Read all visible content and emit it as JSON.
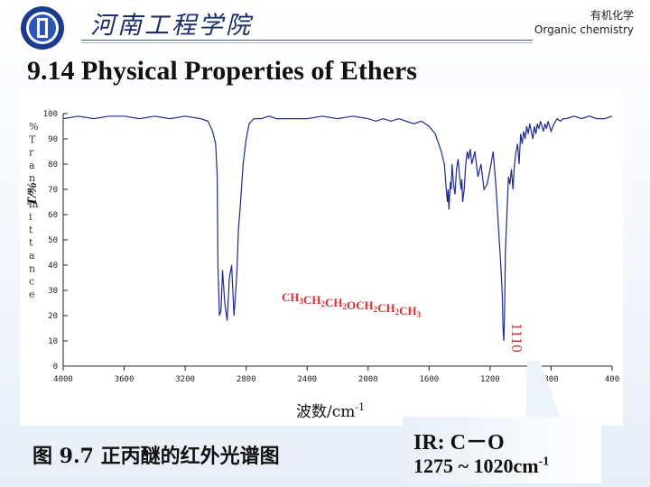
{
  "header": {
    "school_name": "河南工程学院",
    "course_cn": "有机化学",
    "course_en": "Organic chemistry"
  },
  "slide_title": "9.14 Physical Properties of Ethers",
  "caption": "图 9.7 正丙醚的红外光谱图",
  "ir_note": {
    "line1": "IR:  C－O",
    "line2_prefix": "1275 ~ 1020cm",
    "line2_sup": "-1"
  },
  "colors": {
    "spectrum": "#1f2a8a",
    "formula": "#cc3333",
    "axis": "#222222"
  },
  "chart_data": {
    "type": "line",
    "xlabel": "波数/cm",
    "xlabel_sup": "-1",
    "ylabel_vertical": "%Transmittance",
    "ylabel_overlay": "T/%",
    "xlim": [
      4000,
      400
    ],
    "ylim": [
      0,
      100
    ],
    "x_ticks": [
      4000,
      3600,
      3200,
      2800,
      2400,
      2000,
      1600,
      1200,
      800,
      400
    ],
    "y_ticks": [
      0,
      10,
      20,
      30,
      40,
      50,
      60,
      70,
      80,
      90,
      100
    ],
    "compound_label": "CH3CH2CH2OCH2CH2CH3",
    "peak_annotation": "1110",
    "series": [
      {
        "x": [
          4000,
          3900,
          3800,
          3700,
          3600,
          3500,
          3400,
          3300,
          3200,
          3100,
          3050,
          3020,
          3000,
          2990,
          2985,
          2975,
          2965,
          2955,
          2940,
          2925,
          2910,
          2895,
          2880,
          2870,
          2860,
          2850,
          2840,
          2820,
          2800,
          2780,
          2750,
          2700,
          2650,
          2600,
          2500,
          2400,
          2300,
          2200,
          2100,
          2000,
          1950,
          1900,
          1850,
          1800,
          1750,
          1700,
          1650,
          1600,
          1560,
          1520,
          1500,
          1490,
          1480,
          1475,
          1470,
          1465,
          1460,
          1455,
          1450,
          1440,
          1430,
          1420,
          1410,
          1400,
          1390,
          1385,
          1380,
          1370,
          1360,
          1350,
          1340,
          1330,
          1320,
          1300,
          1280,
          1260,
          1240,
          1220,
          1200,
          1180,
          1160,
          1140,
          1130,
          1120,
          1115,
          1110,
          1105,
          1100,
          1090,
          1080,
          1070,
          1060,
          1050,
          1040,
          1030,
          1020,
          1010,
          1000,
          990,
          980,
          970,
          960,
          950,
          940,
          930,
          920,
          910,
          900,
          890,
          880,
          870,
          860,
          850,
          840,
          830,
          820,
          810,
          800,
          780,
          760,
          740,
          720,
          700,
          650,
          600,
          550,
          500,
          450,
          400
        ],
        "values": [
          98,
          99,
          98,
          99,
          99,
          98,
          99,
          98,
          99,
          98,
          97,
          93,
          88,
          75,
          40,
          20,
          22,
          38,
          25,
          18,
          35,
          40,
          20,
          28,
          38,
          55,
          62,
          80,
          90,
          96,
          98,
          98,
          99,
          98,
          98,
          98,
          99,
          98,
          99,
          98,
          97,
          98,
          97,
          98,
          97,
          96,
          97,
          95,
          92,
          85,
          80,
          72,
          65,
          70,
          62,
          68,
          73,
          70,
          80,
          72,
          68,
          78,
          82,
          75,
          70,
          74,
          65,
          70,
          80,
          85,
          82,
          86,
          80,
          85,
          75,
          80,
          70,
          72,
          78,
          85,
          70,
          50,
          40,
          28,
          15,
          10,
          20,
          45,
          60,
          75,
          72,
          78,
          70,
          80,
          85,
          88,
          80,
          92,
          88,
          93,
          90,
          95,
          92,
          96,
          93,
          90,
          95,
          92,
          96,
          94,
          97,
          95,
          93,
          96,
          94,
          97,
          95,
          93,
          96,
          98,
          97,
          98,
          98,
          99,
          98,
          99,
          98,
          98,
          99
        ]
      }
    ]
  }
}
